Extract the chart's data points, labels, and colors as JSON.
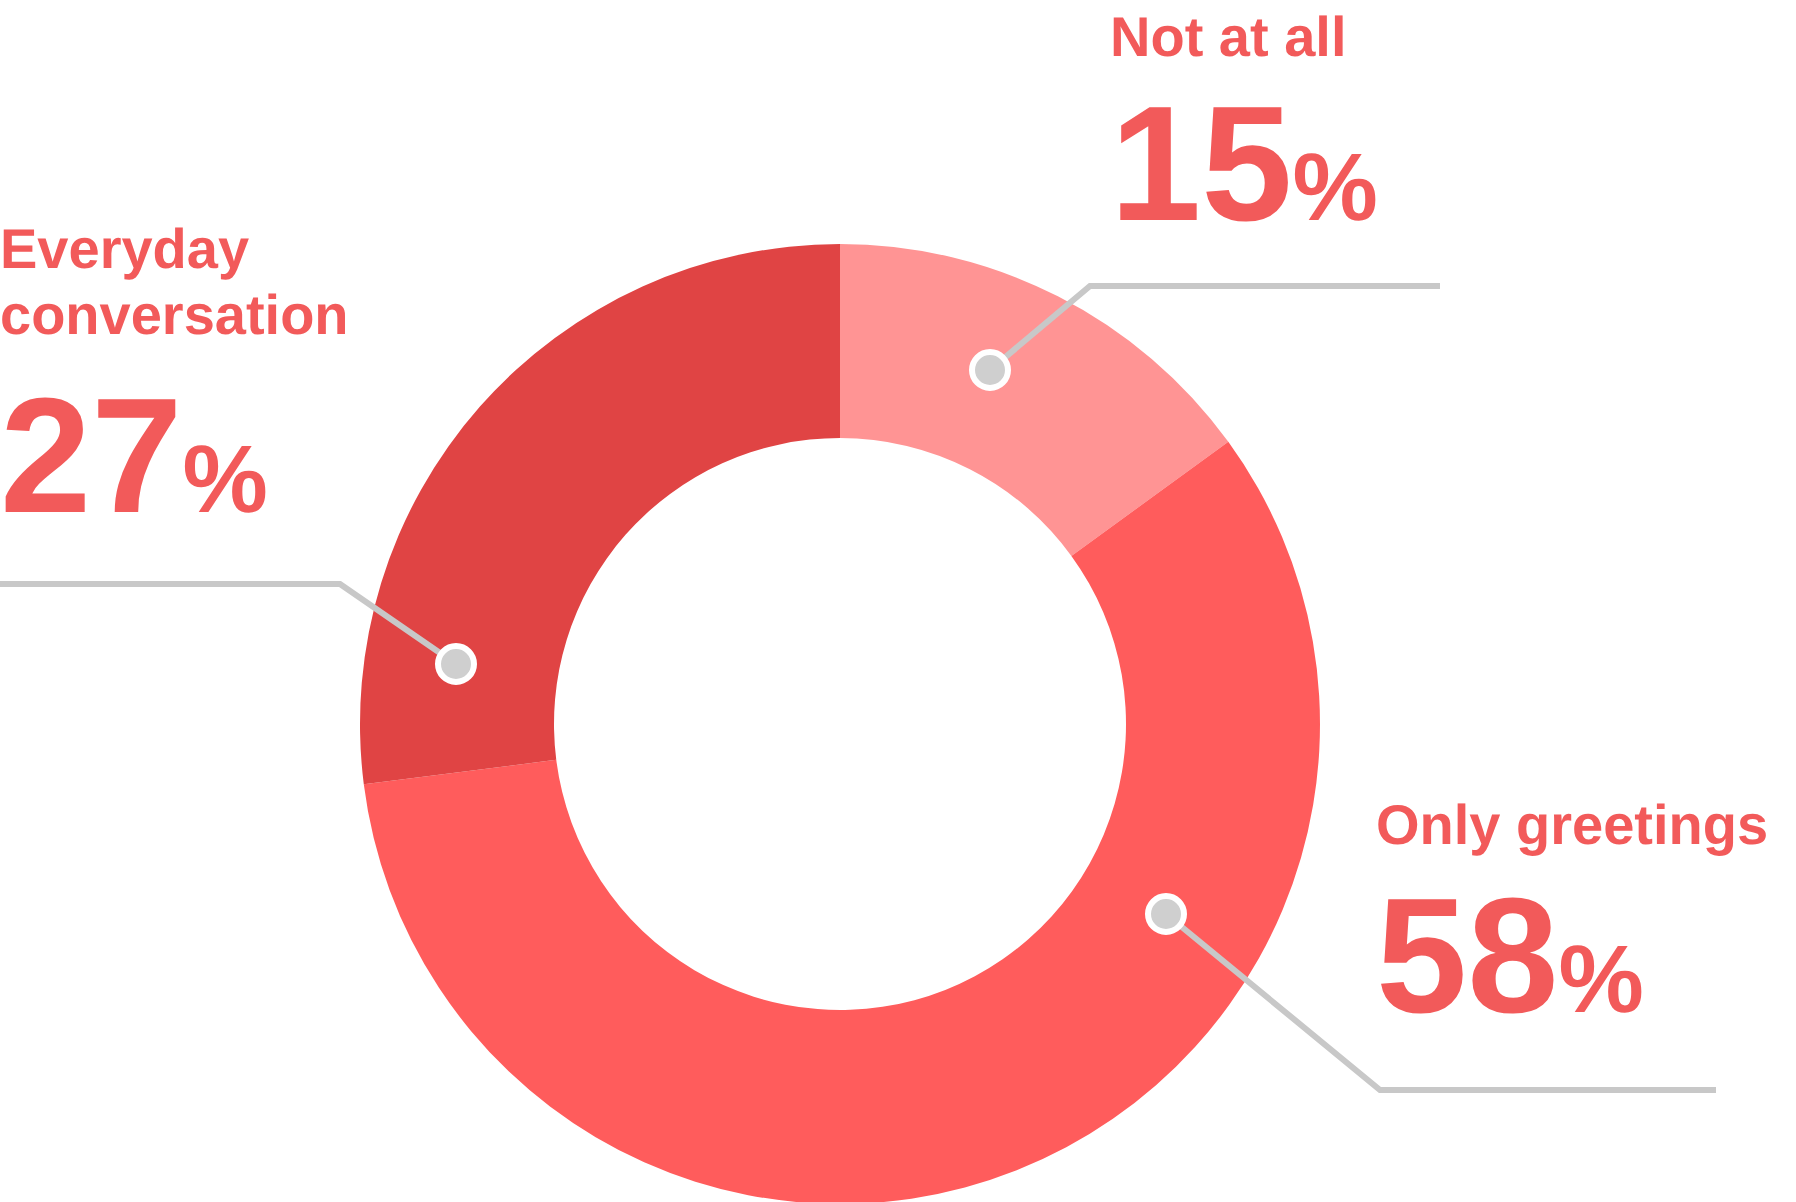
{
  "chart_data": {
    "type": "donut",
    "categories": [
      "Not at all",
      "Only greetings",
      "Everyday conversation"
    ],
    "values": [
      15,
      58,
      27
    ],
    "colors": [
      "#ff9494",
      "#ff5c5c",
      "#e04444"
    ],
    "value_labels": [
      "15%",
      "58%",
      "27%"
    ]
  }
}
